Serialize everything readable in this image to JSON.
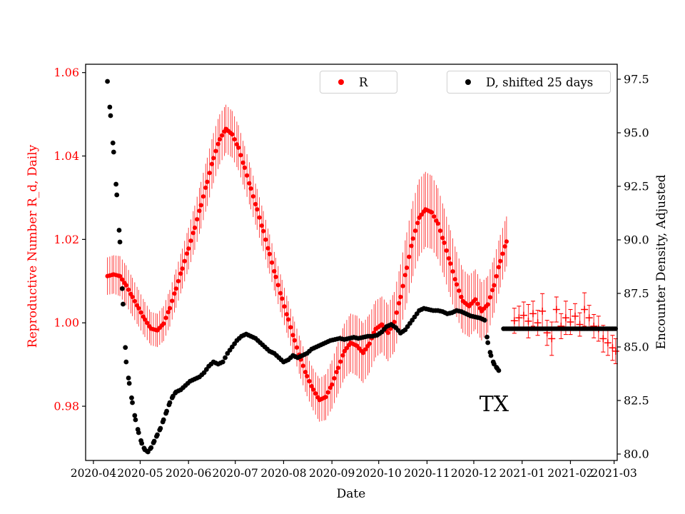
{
  "chart_data": {
    "type": "scatter",
    "title": "",
    "xlabel": "Date",
    "annotation": {
      "text": "TX",
      "x": "2020-12-14",
      "y_axis": "left",
      "y": 0.9805
    },
    "x_ticks": [
      "2020-04",
      "2020-05",
      "2020-06",
      "2020-07",
      "2020-08",
      "2020-09",
      "2020-10",
      "2020-11",
      "2020-12",
      "2021-01",
      "2021-02",
      "2021-03"
    ],
    "xlim": [
      "2020-03-27",
      "2021-03-03"
    ],
    "grid": false,
    "legend_position": "upper center, two boxes",
    "legend": [
      {
        "label": "R",
        "color": "#ff0000",
        "marker": "dot"
      },
      {
        "label": "D, shifted 25 days",
        "color": "#000000",
        "marker": "dot"
      }
    ],
    "axes": {
      "left": {
        "label": "Reproductive Number R_d, Daily",
        "color": "#ff0000",
        "lim": [
          0.967,
          1.062
        ],
        "tick_values": [
          0.98,
          1.0,
          1.02,
          1.04,
          1.06
        ],
        "tick_labels": [
          "0.98",
          "1.00",
          "1.02",
          "1.04",
          "1.06"
        ]
      },
      "right": {
        "label": "Encounter Density, Adjusted",
        "color": "#000000",
        "lim": [
          79.7,
          98.2
        ],
        "tick_values": [
          80.0,
          82.5,
          85.0,
          87.5,
          90.0,
          92.5,
          95.0,
          97.5
        ],
        "tick_labels": [
          "80.0",
          "82.5",
          "85.0",
          "87.5",
          "90.0",
          "92.5",
          "95.0",
          "97.5"
        ]
      }
    },
    "series": [
      {
        "id": "R-daily",
        "name": "R",
        "axis": "left",
        "color": "#ff0000",
        "marker": "dot",
        "msize": 3.1,
        "step_days": 1.5,
        "has_errors": true,
        "points": [
          [
            "2020-04-10",
            1.0112,
            0.0045
          ],
          [
            "2020-04-14",
            1.0116,
            0.0046
          ],
          [
            "2020-04-18",
            1.0112,
            0.0048
          ],
          [
            "2020-04-22",
            1.009,
            0.0048
          ],
          [
            "2020-04-26",
            1.0062,
            0.0046
          ],
          [
            "2020-04-30",
            1.0035,
            0.0044
          ],
          [
            "2020-05-04",
            1.0008,
            0.0042
          ],
          [
            "2020-05-08",
            0.9986,
            0.004
          ],
          [
            "2020-05-12",
            0.9982,
            0.004
          ],
          [
            "2020-05-16",
            0.9998,
            0.0042
          ],
          [
            "2020-05-20",
            1.0035,
            0.0044
          ],
          [
            "2020-05-24",
            1.0082,
            0.0046
          ],
          [
            "2020-05-28",
            1.013,
            0.0048
          ],
          [
            "2020-06-01",
            1.0178,
            0.005
          ],
          [
            "2020-06-05",
            1.0228,
            0.0053
          ],
          [
            "2020-06-09",
            1.0282,
            0.0056
          ],
          [
            "2020-06-13",
            1.0338,
            0.0058
          ],
          [
            "2020-06-17",
            1.0395,
            0.006
          ],
          [
            "2020-06-21",
            1.044,
            0.006
          ],
          [
            "2020-06-25",
            1.0465,
            0.0058
          ],
          [
            "2020-06-29",
            1.0452,
            0.0056
          ],
          [
            "2020-07-03",
            1.042,
            0.0054
          ],
          [
            "2020-07-07",
            1.0372,
            0.0052
          ],
          [
            "2020-07-11",
            1.0322,
            0.005
          ],
          [
            "2020-07-15",
            1.0272,
            0.0049
          ],
          [
            "2020-07-19",
            1.022,
            0.0048
          ],
          [
            "2020-07-23",
            1.0165,
            0.0047
          ],
          [
            "2020-07-27",
            1.011,
            0.0046
          ],
          [
            "2020-07-31",
            1.0058,
            0.0045
          ],
          [
            "2020-08-04",
            1.0008,
            0.0044
          ],
          [
            "2020-08-08",
            0.9958,
            0.0045
          ],
          [
            "2020-08-12",
            0.9912,
            0.0046
          ],
          [
            "2020-08-16",
            0.9872,
            0.0048
          ],
          [
            "2020-08-20",
            0.984,
            0.005
          ],
          [
            "2020-08-24",
            0.9815,
            0.0052
          ],
          [
            "2020-08-28",
            0.9822,
            0.0055
          ],
          [
            "2020-09-01",
            0.9852,
            0.0058
          ],
          [
            "2020-09-05",
            0.9892,
            0.0062
          ],
          [
            "2020-09-09",
            0.9932,
            0.0066
          ],
          [
            "2020-09-13",
            0.9952,
            0.007
          ],
          [
            "2020-09-17",
            0.9945,
            0.0072
          ],
          [
            "2020-09-21",
            0.9928,
            0.0072
          ],
          [
            "2020-09-25",
            0.995,
            0.007
          ],
          [
            "2020-09-29",
            0.9985,
            0.0068
          ],
          [
            "2020-10-03",
            0.9996,
            0.0067
          ],
          [
            "2020-10-07",
            0.9976,
            0.0068
          ],
          [
            "2020-10-11",
            1.0002,
            0.0072
          ],
          [
            "2020-10-15",
            1.0062,
            0.0078
          ],
          [
            "2020-10-19",
            1.0132,
            0.0085
          ],
          [
            "2020-10-23",
            1.0202,
            0.009
          ],
          [
            "2020-10-27",
            1.0252,
            0.0092
          ],
          [
            "2020-10-31",
            1.0272,
            0.009
          ],
          [
            "2020-11-04",
            1.0265,
            0.0088
          ],
          [
            "2020-11-08",
            1.0238,
            0.0085
          ],
          [
            "2020-11-12",
            1.0192,
            0.0082
          ],
          [
            "2020-11-16",
            1.0142,
            0.008
          ],
          [
            "2020-11-20",
            1.0092,
            0.0078
          ],
          [
            "2020-11-24",
            1.0052,
            0.0076
          ],
          [
            "2020-11-28",
            1.004,
            0.0074
          ],
          [
            "2020-12-02",
            1.0056,
            0.0072
          ],
          [
            "2020-12-06",
            1.0028,
            0.007
          ],
          [
            "2020-12-10",
            1.0044,
            0.0068
          ],
          [
            "2020-12-14",
            1.009,
            0.0066
          ],
          [
            "2020-12-18",
            1.0148,
            0.0063
          ],
          [
            "2020-12-22",
            1.0195,
            0.006
          ]
        ]
      },
      {
        "id": "R-late",
        "name": "R",
        "axis": "left",
        "color": "#ff0000",
        "marker": "plus",
        "msize": 5,
        "step_days": 0,
        "has_errors": true,
        "points": [
          [
            "2020-12-27",
            1.0005,
            0.003
          ],
          [
            "2020-12-30",
            1.0012,
            0.0028
          ],
          [
            "2021-01-02",
            1.0018,
            0.0032
          ],
          [
            "2021-01-05",
            1.0004,
            0.004
          ],
          [
            "2021-01-08",
            1.0022,
            0.003
          ],
          [
            "2021-01-11",
            1.0,
            0.003
          ],
          [
            "2021-01-14",
            1.0028,
            0.0042
          ],
          [
            "2021-01-17",
            0.9976,
            0.003
          ],
          [
            "2021-01-20",
            0.9962,
            0.004
          ],
          [
            "2021-01-23",
            1.0032,
            0.003
          ],
          [
            "2021-01-26",
            0.9992,
            0.003
          ],
          [
            "2021-01-29",
            1.0012,
            0.004
          ],
          [
            "2021-02-01",
            1.0002,
            0.003
          ],
          [
            "2021-02-04",
            1.0016,
            0.003
          ],
          [
            "2021-02-07",
            0.9996,
            0.0028
          ],
          [
            "2021-02-10",
            1.0032,
            0.004
          ],
          [
            "2021-02-13",
            1.0012,
            0.003
          ],
          [
            "2021-02-16",
            0.9992,
            0.0028
          ],
          [
            "2021-02-19",
            0.9986,
            0.003
          ],
          [
            "2021-02-22",
            0.9962,
            0.0032
          ],
          [
            "2021-02-25",
            0.9952,
            0.003
          ],
          [
            "2021-02-28",
            0.994,
            0.003
          ],
          [
            "2021-03-02",
            0.9932,
            0.003
          ]
        ]
      },
      {
        "id": "D-shifted",
        "name": "D, shifted 25 days",
        "axis": "right",
        "color": "#000000",
        "marker": "dot",
        "msize": 3.4,
        "step_days": 1.5,
        "has_errors": false,
        "points": [
          [
            "2020-04-10",
            97.4
          ],
          [
            "2020-04-12",
            95.8
          ],
          [
            "2020-04-14",
            94.1
          ],
          [
            "2020-04-16",
            92.1
          ],
          [
            "2020-04-18",
            89.9
          ],
          [
            "2020-04-20",
            87.0
          ],
          [
            "2020-04-22",
            84.3
          ],
          [
            "2020-04-24",
            83.3
          ],
          [
            "2020-04-26",
            82.4
          ],
          [
            "2020-04-28",
            81.6
          ],
          [
            "2020-04-30",
            81.0
          ],
          [
            "2020-05-02",
            80.5
          ],
          [
            "2020-05-04",
            80.2
          ],
          [
            "2020-05-06",
            80.1
          ],
          [
            "2020-05-08",
            80.3
          ],
          [
            "2020-05-10",
            80.6
          ],
          [
            "2020-05-12",
            80.9
          ],
          [
            "2020-05-14",
            81.2
          ],
          [
            "2020-05-16",
            81.6
          ],
          [
            "2020-05-18",
            82.0
          ],
          [
            "2020-05-20",
            82.4
          ],
          [
            "2020-05-22",
            82.7
          ],
          [
            "2020-05-24",
            82.9
          ],
          [
            "2020-05-27",
            83.0
          ],
          [
            "2020-05-30",
            83.2
          ],
          [
            "2020-06-02",
            83.4
          ],
          [
            "2020-06-05",
            83.5
          ],
          [
            "2020-06-08",
            83.6
          ],
          [
            "2020-06-11",
            83.8
          ],
          [
            "2020-06-14",
            84.1
          ],
          [
            "2020-06-17",
            84.3
          ],
          [
            "2020-06-20",
            84.2
          ],
          [
            "2020-06-23",
            84.3
          ],
          [
            "2020-06-26",
            84.7
          ],
          [
            "2020-06-29",
            85.0
          ],
          [
            "2020-07-02",
            85.3
          ],
          [
            "2020-07-05",
            85.5
          ],
          [
            "2020-07-08",
            85.6
          ],
          [
            "2020-07-11",
            85.5
          ],
          [
            "2020-07-14",
            85.4
          ],
          [
            "2020-07-17",
            85.2
          ],
          [
            "2020-07-20",
            85.0
          ],
          [
            "2020-07-23",
            84.8
          ],
          [
            "2020-07-26",
            84.7
          ],
          [
            "2020-07-29",
            84.5
          ],
          [
            "2020-08-01",
            84.3
          ],
          [
            "2020-08-04",
            84.4
          ],
          [
            "2020-08-07",
            84.6
          ],
          [
            "2020-08-10",
            84.5
          ],
          [
            "2020-08-13",
            84.6
          ],
          [
            "2020-08-16",
            84.7
          ],
          [
            "2020-08-19",
            84.9
          ],
          [
            "2020-08-22",
            85.0
          ],
          [
            "2020-08-25",
            85.1
          ],
          [
            "2020-08-28",
            85.2
          ],
          [
            "2020-08-31",
            85.3
          ],
          [
            "2020-09-03",
            85.35
          ],
          [
            "2020-09-06",
            85.4
          ],
          [
            "2020-09-09",
            85.35
          ],
          [
            "2020-09-12",
            85.4
          ],
          [
            "2020-09-15",
            85.45
          ],
          [
            "2020-09-18",
            85.4
          ],
          [
            "2020-09-21",
            85.45
          ],
          [
            "2020-09-24",
            85.5
          ],
          [
            "2020-09-27",
            85.5
          ],
          [
            "2020-09-30",
            85.55
          ],
          [
            "2020-10-03",
            85.7
          ],
          [
            "2020-10-06",
            85.95
          ],
          [
            "2020-10-09",
            86.05
          ],
          [
            "2020-10-12",
            85.9
          ],
          [
            "2020-10-15",
            85.65
          ],
          [
            "2020-10-18",
            85.8
          ],
          [
            "2020-10-21",
            86.1
          ],
          [
            "2020-10-24",
            86.4
          ],
          [
            "2020-10-27",
            86.7
          ],
          [
            "2020-10-30",
            86.8
          ],
          [
            "2020-11-02",
            86.75
          ],
          [
            "2020-11-05",
            86.7
          ],
          [
            "2020-11-08",
            86.7
          ],
          [
            "2020-11-11",
            86.65
          ],
          [
            "2020-11-14",
            86.55
          ],
          [
            "2020-11-17",
            86.6
          ],
          [
            "2020-11-20",
            86.7
          ],
          [
            "2020-11-23",
            86.65
          ],
          [
            "2020-11-26",
            86.55
          ],
          [
            "2020-11-29",
            86.45
          ],
          [
            "2020-12-02",
            86.4
          ],
          [
            "2020-12-05",
            86.35
          ],
          [
            "2020-12-08",
            86.25
          ],
          [
            "2020-12-10",
            85.2
          ],
          [
            "2020-12-12",
            84.6
          ],
          [
            "2020-12-14",
            84.2
          ],
          [
            "2020-12-16",
            84.0
          ],
          [
            "2020-12-17",
            83.9
          ]
        ]
      },
      {
        "id": "D-tail",
        "name": "D, shifted 25 days",
        "axis": "right",
        "color": "#000000",
        "marker": "dot",
        "msize": 3.2,
        "step_days": 1,
        "has_errors": false,
        "points": [
          [
            "2020-12-20",
            85.85
          ],
          [
            "2021-01-10",
            85.85
          ],
          [
            "2021-02-01",
            85.85
          ],
          [
            "2021-02-20",
            85.85
          ],
          [
            "2021-03-02",
            85.85
          ]
        ]
      }
    ]
  }
}
